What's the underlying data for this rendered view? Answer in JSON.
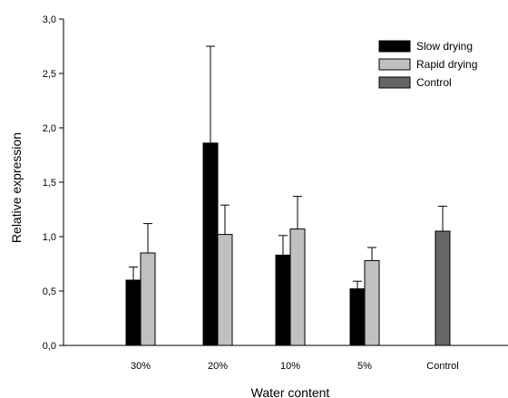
{
  "chart_data": {
    "type": "bar",
    "xlabel": "Water content",
    "ylabel": "Relative expression",
    "ylim": [
      0,
      3.0
    ],
    "y_ticks": [
      "0,0",
      "0,5",
      "1,0",
      "1,5",
      "2,0",
      "2,5",
      "3,0"
    ],
    "categories": [
      "30%",
      "20%",
      "10%",
      "5%",
      "Control"
    ],
    "series": [
      {
        "name": "Slow drying",
        "color": "#000000",
        "values": [
          0.6,
          1.86,
          0.83,
          0.52,
          null
        ],
        "errors": [
          0.12,
          0.89,
          0.18,
          0.07,
          null
        ]
      },
      {
        "name": "Rapid drying",
        "color": "#c0c0c0",
        "values": [
          0.85,
          1.02,
          1.07,
          0.78,
          null
        ],
        "errors": [
          0.27,
          0.27,
          0.3,
          0.12,
          null
        ]
      },
      {
        "name": "Control",
        "color": "#666666",
        "values": [
          null,
          null,
          null,
          null,
          1.05
        ],
        "errors": [
          null,
          null,
          null,
          null,
          0.23
        ]
      }
    ],
    "legend": "top-right",
    "grid": false
  }
}
